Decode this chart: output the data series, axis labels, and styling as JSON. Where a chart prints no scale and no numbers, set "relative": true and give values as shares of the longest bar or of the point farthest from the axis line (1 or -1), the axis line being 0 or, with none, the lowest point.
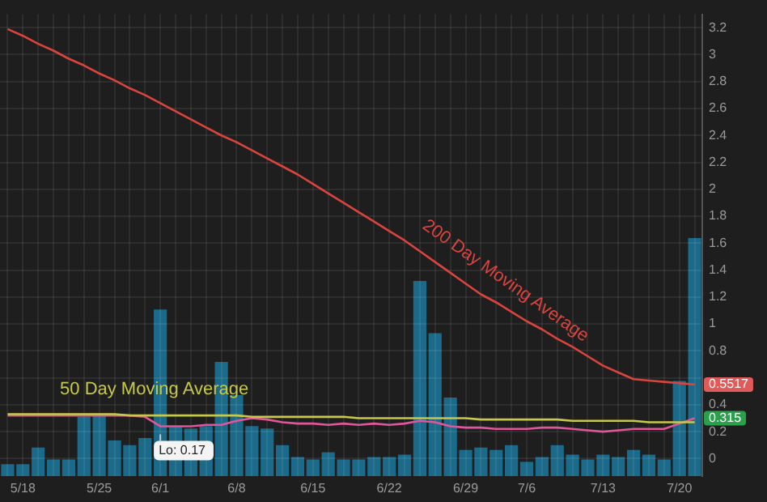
{
  "chart_data": [
    {
      "type": "bar",
      "relative": true,
      "color": "#1b6a8a",
      "tick_labels": "x",
      "categories": [
        null,
        "5/18",
        null,
        null,
        null,
        null,
        "5/25",
        null,
        null,
        null,
        "6/1",
        null,
        null,
        null,
        null,
        "6/8",
        null,
        null,
        null,
        null,
        "6/15",
        null,
        null,
        null,
        null,
        "6/22",
        null,
        null,
        null,
        null,
        "6/29",
        null,
        null,
        null,
        "7/6",
        null,
        null,
        null,
        null,
        "7/13",
        null,
        null,
        null,
        null,
        "7/20",
        null
      ],
      "values": [
        0.05,
        0.05,
        0.12,
        0.07,
        0.07,
        0.25,
        0.26,
        0.15,
        0.13,
        0.16,
        0.7,
        0.21,
        0.2,
        0.21,
        0.48,
        0.34,
        0.21,
        0.2,
        0.13,
        0.08,
        0.07,
        0.1,
        0.07,
        0.07,
        0.08,
        0.08,
        0.09,
        0.82,
        0.6,
        0.33,
        0.11,
        0.12,
        0.11,
        0.13,
        0.06,
        0.08,
        0.13,
        0.09,
        0.07,
        0.09,
        0.08,
        0.11,
        0.09,
        0.07,
        0.4,
        1
      ]
    },
    {
      "type": "line",
      "tick_labels": "y",
      "categories": [
        null,
        null,
        null,
        null,
        null,
        null,
        null,
        null,
        null,
        null,
        null,
        null,
        null,
        null,
        null,
        null,
        null,
        null,
        null,
        null,
        null,
        null,
        null,
        null,
        null,
        null,
        null,
        null,
        null,
        null,
        null,
        null,
        null,
        null,
        null,
        null,
        null,
        null,
        null,
        null,
        null,
        null,
        null,
        null,
        null,
        null
      ],
      "series": [
        {
          "name": "200 Day Moving Average",
          "color": "#d9443f",
          "values": [
            3.19,
            3.14,
            3.08,
            3.03,
            2.97,
            2.92,
            2.86,
            2.81,
            2.75,
            2.7,
            2.64,
            2.58,
            2.52,
            2.46,
            2.4,
            2.35,
            2.29,
            2.23,
            2.17,
            2.11,
            2.04,
            1.97,
            1.9,
            1.83,
            1.76,
            1.69,
            1.62,
            1.54,
            1.46,
            1.38,
            1.3,
            1.22,
            1.16,
            1.09,
            1.02,
            0.96,
            0.89,
            0.83,
            0.76,
            0.69,
            0.64,
            0.59,
            0.58,
            0.57,
            0.56,
            0.55
          ]
        },
        {
          "name": "50 Day Moving Average",
          "color": "#c8c84a",
          "values": [
            0.33,
            0.33,
            0.33,
            0.33,
            0.33,
            0.33,
            0.33,
            0.33,
            0.32,
            0.32,
            0.32,
            0.32,
            0.32,
            0.32,
            0.32,
            0.32,
            0.31,
            0.31,
            0.31,
            0.31,
            0.31,
            0.31,
            0.31,
            0.3,
            0.3,
            0.3,
            0.3,
            0.3,
            0.3,
            0.3,
            0.3,
            0.29,
            0.29,
            0.29,
            0.29,
            0.29,
            0.29,
            0.28,
            0.28,
            0.28,
            0.28,
            0.28,
            0.27,
            0.27,
            0.27,
            0.27
          ]
        },
        {
          "color": "#e0569a",
          "values": [
            0.32,
            0.32,
            0.32,
            0.32,
            0.32,
            0.32,
            0.32,
            0.32,
            0.32,
            0.31,
            0.24,
            0.24,
            0.24,
            0.25,
            0.25,
            0.28,
            0.3,
            0.29,
            0.27,
            0.26,
            0.26,
            0.25,
            0.26,
            0.25,
            0.26,
            0.25,
            0.26,
            0.28,
            0.27,
            0.24,
            0.23,
            0.23,
            0.22,
            0.22,
            0.22,
            0.23,
            0.23,
            0.22,
            0.21,
            0.2,
            0.21,
            0.22,
            0.22,
            0.22,
            0.26,
            0.3
          ]
        }
      ],
      "ylim": [
        -0.13,
        3.3
      ],
      "yticks": [
        0,
        0.2,
        0.4,
        {
          "value": 0.6,
          "label": null
        },
        0.8,
        1,
        1.2,
        1.4,
        1.6,
        1.8,
        2,
        2.2,
        2.4,
        2.6,
        2.8,
        3,
        3.2
      ],
      "annotations": [
        "Lo: 0.17",
        "0.5517",
        "0.315"
      ],
      "grid": true,
      "marker": "none",
      "line_style": "solid"
    }
  ]
}
